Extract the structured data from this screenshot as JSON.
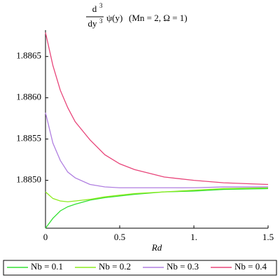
{
  "chart_data": {
    "type": "line",
    "title": {
      "numerator": "d",
      "order": "3",
      "denominator": "dy",
      "function": "ψ(y)",
      "parameters": "(Mn = 2, Ω = 1)"
    },
    "x_label": "Rd",
    "x": [
      0,
      0.05,
      0.1,
      0.15,
      0.2,
      0.3,
      0.4,
      0.5,
      0.6,
      0.8,
      1.0,
      1.2,
      1.5
    ],
    "series": [
      {
        "name": "Nb = 0.1",
        "color": "#33e033",
        "values": [
          1.88442,
          1.88454,
          1.88463,
          1.88468,
          1.88471,
          1.88476,
          1.88479,
          1.88481,
          1.88483,
          1.88486,
          1.88487,
          1.88489,
          1.8849
        ]
      },
      {
        "name": "Nb = 0.2",
        "color": "#8cec1e",
        "values": [
          1.88486,
          1.88478,
          1.88475,
          1.88474,
          1.88475,
          1.88477,
          1.8848,
          1.88482,
          1.88484,
          1.88486,
          1.88488,
          1.8849,
          1.88491
        ]
      },
      {
        "name": "Nb = 0.3",
        "color": "#b07fe0",
        "values": [
          1.88582,
          1.88545,
          1.88524,
          1.8851,
          1.88503,
          1.88495,
          1.88492,
          1.88491,
          1.88491,
          1.88491,
          1.88491,
          1.88492,
          1.88492
        ]
      },
      {
        "name": "Nb = 0.4",
        "color": "#e8457a",
        "values": [
          1.88679,
          1.88639,
          1.88609,
          1.88588,
          1.88571,
          1.88549,
          1.88531,
          1.8852,
          1.88513,
          1.88504,
          1.885,
          1.88497,
          1.88495
        ]
      }
    ],
    "xlim": [
      0,
      1.5
    ],
    "xticks": [
      0,
      0.5,
      {
        "value": 1,
        "label": "1."
      },
      1.5
    ],
    "ylim": [
      1.88442,
      1.88682
    ],
    "yticks": [
      {
        "value": 1.885,
        "label": "1.8850"
      },
      1.8855,
      {
        "value": 1.886,
        "label": "1.8860"
      },
      1.8865
    ]
  }
}
